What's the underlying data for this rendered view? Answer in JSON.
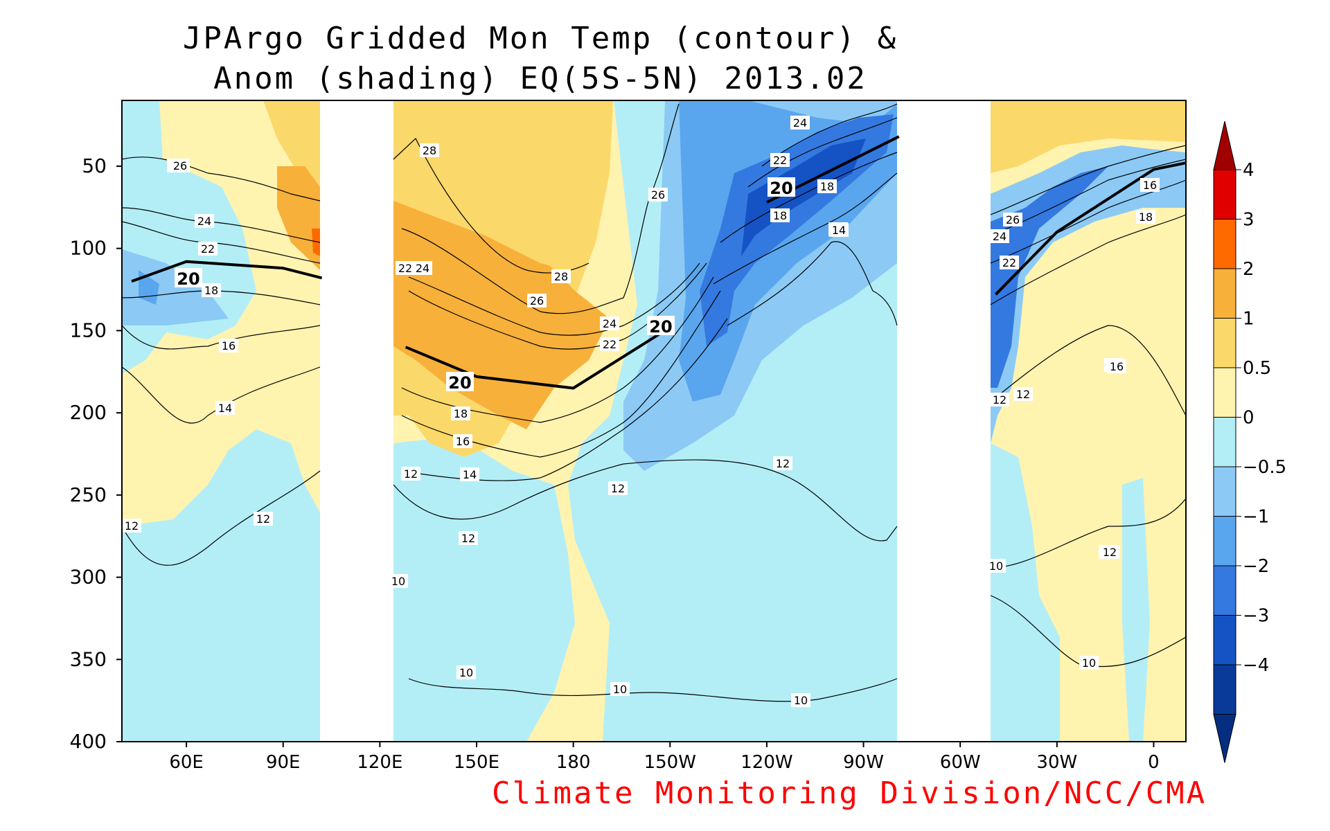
{
  "title_line1": "JPArgo Gridded Mon Temp (contour) &",
  "title_line2": "Anom (shading) EQ(5S-5N) 2013.02",
  "credit": "Climate Monitoring Division/NCC/CMA",
  "colors": {
    "credit": "#ff0000"
  },
  "chart_data": {
    "type": "heatmap",
    "title": "JPArgo Gridded Mon Temp (contour) & Anom (shading) EQ(5S-5N) 2013.02",
    "x_range": [
      "40E",
      "10E"
    ],
    "x_ticks": [
      "60E",
      "90E",
      "120E",
      "150E",
      "180",
      "150W",
      "120W",
      "90W",
      "60W",
      "30W",
      "0"
    ],
    "y_range": [
      10,
      400
    ],
    "y_reversed": true,
    "y_ticks": [
      50,
      100,
      150,
      200,
      250,
      300,
      350,
      400
    ],
    "land_gaps_lon": [
      [
        102,
        125
      ],
      [
        -79,
        -49
      ]
    ],
    "colorbar": {
      "labels": [
        "4",
        "3",
        "2",
        "1",
        "0.5",
        "0",
        "−0.5",
        "−1",
        "−2",
        "−3",
        "−4"
      ],
      "colors": [
        "#a00000",
        "#e00000",
        "#ff6a00",
        "#f7b03a",
        "#fbd86a",
        "#fff3b0",
        "#b3eef7",
        "#8ccaf5",
        "#5aa6ee",
        "#3479e0",
        "#1553c4",
        "#0a3a99",
        "#052e80"
      ]
    },
    "contour_labels": [
      "28",
      "26",
      "24",
      "22",
      "20",
      "18",
      "16",
      "14",
      "12",
      "10"
    ],
    "isotherm_20_depth_m": [
      {
        "lon": 43,
        "depth": 120
      },
      {
        "lon": 60,
        "depth": 108
      },
      {
        "lon": 90,
        "depth": 112
      },
      {
        "lon": 102,
        "depth": 118
      },
      {
        "lon": 128,
        "depth": 160
      },
      {
        "lon": 150,
        "depth": 178
      },
      {
        "lon": 180,
        "depth": 185
      },
      {
        "lon": -150,
        "depth": 148
      },
      {
        "lon": -120,
        "depth": 72
      },
      {
        "lon": -79,
        "depth": 32
      },
      {
        "lon": -49,
        "depth": 128
      },
      {
        "lon": -30,
        "depth": 90
      },
      {
        "lon": 0,
        "depth": 52
      },
      {
        "lon": 10,
        "depth": 48
      }
    ]
  }
}
